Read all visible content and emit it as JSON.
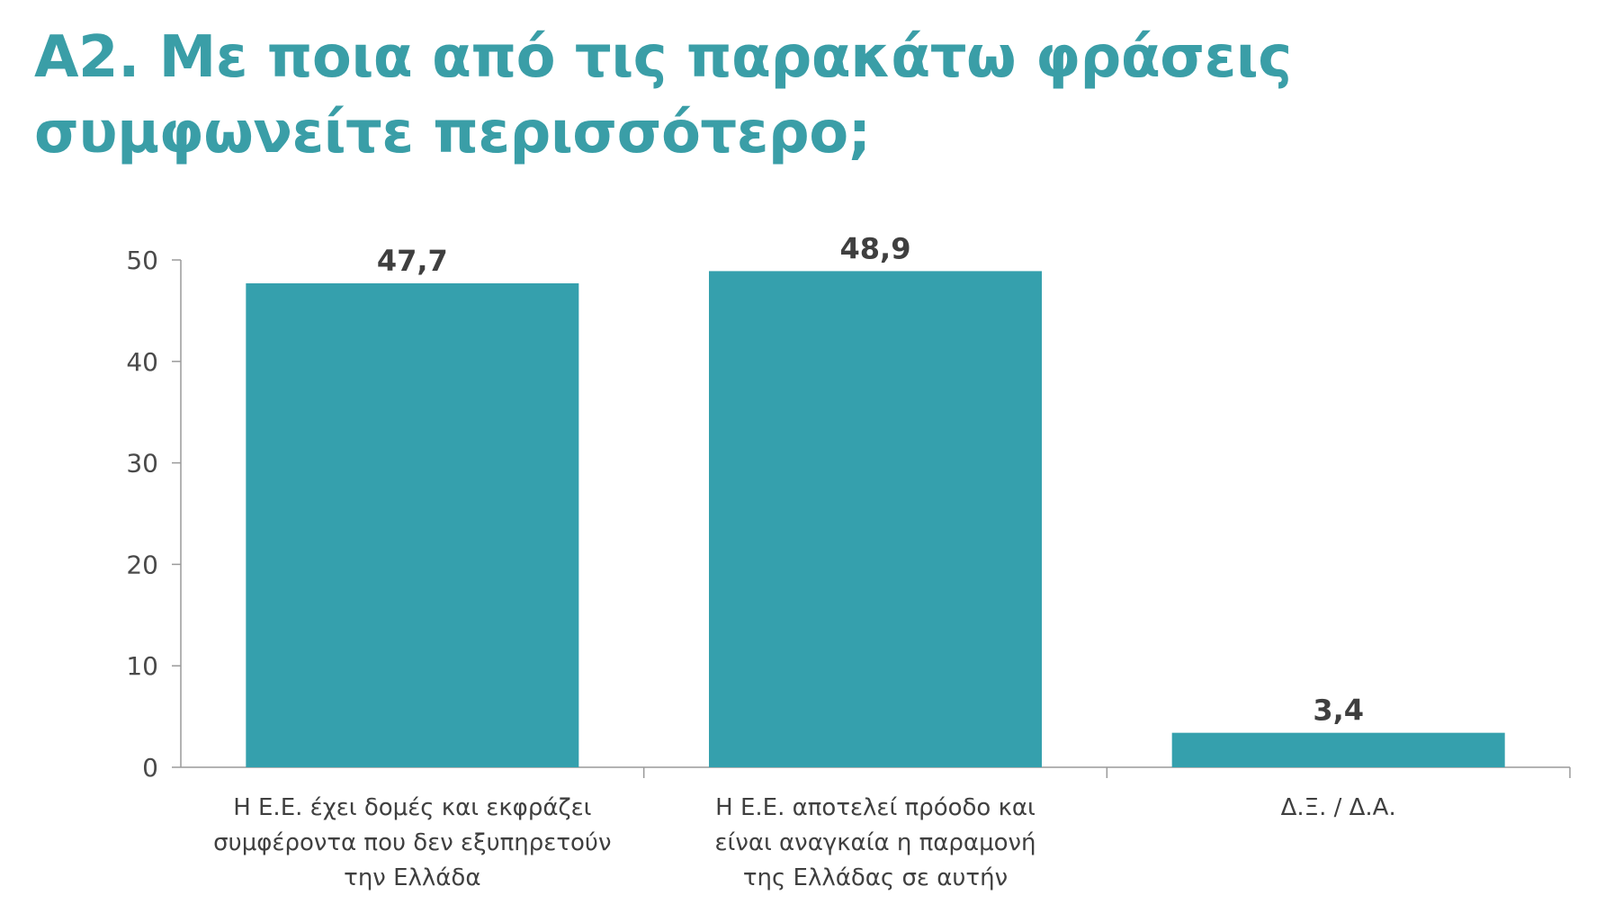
{
  "title": {
    "line1": "Α2. Με ποια από τις παρακάτω φράσεις",
    "line2": "συμφωνείτε περισσότερο;"
  },
  "colors": {
    "title": "#3a9ea7",
    "bar": "#35a0ad",
    "axis": "#9a9a9a",
    "text": "#3f3f3f"
  },
  "chart_data": {
    "type": "bar",
    "title": "Α2. Με ποια από τις παρακάτω φράσεις συμφωνείτε περισσότερο;",
    "categories": [
      [
        "Η Ε.Ε. έχει δομές και εκφράζει",
        "συμφέροντα που δεν εξυπηρετούν",
        "την Ελλάδα"
      ],
      [
        "Η Ε.Ε. αποτελεί πρόοδο και",
        "είναι αναγκαία η παραμονή",
        "της Ελλάδας σε αυτήν"
      ],
      [
        "Δ.Ξ. / Δ.Α."
      ]
    ],
    "values": [
      47.7,
      48.9,
      3.4
    ],
    "value_labels": [
      "47,7",
      "48,9",
      "3,4"
    ],
    "y_ticks": [
      0,
      10,
      20,
      30,
      40,
      50
    ],
    "ylim": [
      0,
      50
    ],
    "xlabel": "",
    "ylabel": "",
    "grid": false,
    "legend": "none"
  }
}
